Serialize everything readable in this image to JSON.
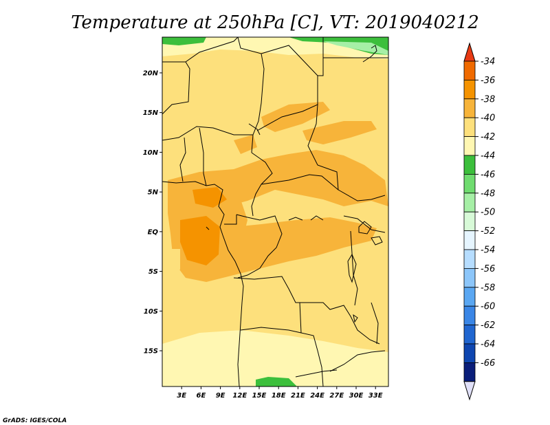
{
  "title": "Temperature at 250hPa [C], VT: 2019040212",
  "credit": "GrADS: IGES/COLA",
  "map": {
    "lon_range": [
      0,
      35
    ],
    "lat_range": [
      -19.5,
      24.5
    ],
    "lon_ticks": [
      {
        "value": 3,
        "label": "3E"
      },
      {
        "value": 6,
        "label": "6E"
      },
      {
        "value": 9,
        "label": "9E"
      },
      {
        "value": 12,
        "label": "12E"
      },
      {
        "value": 15,
        "label": "15E"
      },
      {
        "value": 18,
        "label": "18E"
      },
      {
        "value": 21,
        "label": "21E"
      },
      {
        "value": 24,
        "label": "24E"
      },
      {
        "value": 27,
        "label": "27E"
      },
      {
        "value": 30,
        "label": "30E"
      },
      {
        "value": 33,
        "label": "33E"
      }
    ],
    "lat_ticks": [
      {
        "value": 20,
        "label": "20N"
      },
      {
        "value": 15,
        "label": "15N"
      },
      {
        "value": 10,
        "label": "10N"
      },
      {
        "value": 5,
        "label": "5N"
      },
      {
        "value": 0,
        "label": "EQ"
      },
      {
        "value": -5,
        "label": "5S"
      },
      {
        "value": -10,
        "label": "10S"
      },
      {
        "value": -15,
        "label": "15S"
      }
    ]
  },
  "colorbar": {
    "levels": [
      {
        "label": "-34",
        "color": "#f06a00"
      },
      {
        "label": "-36",
        "color": "#f59300"
      },
      {
        "label": "-38",
        "color": "#f7b43a"
      },
      {
        "label": "-40",
        "color": "#fde07c"
      },
      {
        "label": "-42",
        "color": "#fff7b2"
      },
      {
        "label": "-44",
        "color": "#3cbf3c"
      },
      {
        "label": "-46",
        "color": "#6fdc6f"
      },
      {
        "label": "-48",
        "color": "#a6efa6"
      },
      {
        "label": "-50",
        "color": "#d8fad8"
      },
      {
        "label": "-52",
        "color": "#e6f5ff"
      },
      {
        "label": "-54",
        "color": "#b6ddff"
      },
      {
        "label": "-56",
        "color": "#8cc6fa"
      },
      {
        "label": "-58",
        "color": "#5aa7f2"
      },
      {
        "label": "-60",
        "color": "#3a86e6"
      },
      {
        "label": "-62",
        "color": "#2066d0"
      },
      {
        "label": "-64",
        "color": "#0e46b0"
      },
      {
        "label": "-66",
        "color": "#0a1e7a"
      }
    ],
    "top_color": "#e83a14",
    "bottom_color": "#e0e0f8"
  }
}
